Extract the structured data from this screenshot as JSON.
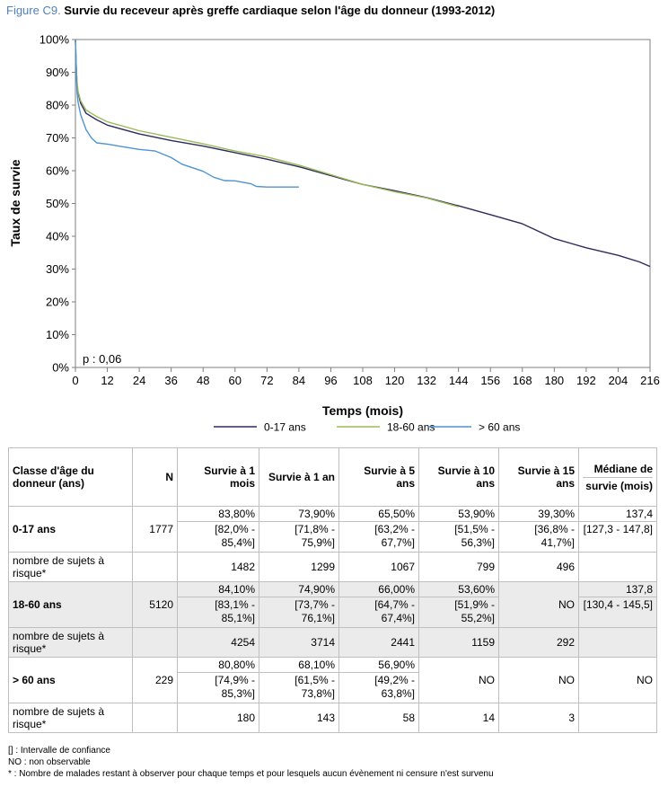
{
  "figure": {
    "label": "Figure C9.",
    "title": "Survie du receveur après greffe cardiaque selon l'âge du donneur (1993-2012)"
  },
  "chart_data": {
    "type": "line",
    "xlabel": "Temps (mois)",
    "ylabel": "Taux de survie",
    "xlim": [
      0,
      216
    ],
    "ylim": [
      0,
      100
    ],
    "x_ticks": [
      0,
      12,
      24,
      36,
      48,
      60,
      72,
      84,
      96,
      108,
      120,
      132,
      144,
      156,
      168,
      180,
      192,
      204,
      216
    ],
    "y_ticks": [
      "0%",
      "10%",
      "20%",
      "30%",
      "40%",
      "50%",
      "60%",
      "70%",
      "80%",
      "90%",
      "100%"
    ],
    "annotation": "p : 0,06",
    "legend_position": "bottom",
    "grid": false,
    "series": [
      {
        "name": "0-17 ans",
        "color": "#2e2b5f",
        "points": [
          [
            0,
            100
          ],
          [
            0.3,
            92
          ],
          [
            0.6,
            86
          ],
          [
            1,
            83.8
          ],
          [
            2,
            80.5
          ],
          [
            4,
            77.5
          ],
          [
            8,
            75.5
          ],
          [
            12,
            73.9
          ],
          [
            24,
            71.2
          ],
          [
            36,
            69.2
          ],
          [
            48,
            67.5
          ],
          [
            60,
            65.5
          ],
          [
            72,
            63.5
          ],
          [
            84,
            61.2
          ],
          [
            96,
            58.5
          ],
          [
            108,
            55.8
          ],
          [
            120,
            53.9
          ],
          [
            132,
            51.8
          ],
          [
            144,
            49.3
          ],
          [
            156,
            46.6
          ],
          [
            168,
            43.8
          ],
          [
            180,
            39.3
          ],
          [
            192,
            36.5
          ],
          [
            204,
            34.2
          ],
          [
            212,
            32.2
          ],
          [
            216,
            30.8
          ]
        ]
      },
      {
        "name": "18-60 ans",
        "color": "#9bbb59",
        "points": [
          [
            0,
            100
          ],
          [
            0.3,
            92
          ],
          [
            0.6,
            87
          ],
          [
            1,
            84.1
          ],
          [
            2,
            81.3
          ],
          [
            4,
            78.5
          ],
          [
            8,
            76.5
          ],
          [
            12,
            74.9
          ],
          [
            24,
            72.2
          ],
          [
            36,
            70.2
          ],
          [
            48,
            68.2
          ],
          [
            60,
            66.0
          ],
          [
            72,
            64.2
          ],
          [
            84,
            61.7
          ],
          [
            96,
            58.8
          ],
          [
            108,
            55.8
          ],
          [
            120,
            53.6
          ],
          [
            132,
            51.7
          ],
          [
            144,
            49.0
          ]
        ]
      },
      {
        "name": "> 60 ans",
        "color": "#4f93d4",
        "points": [
          [
            0,
            100
          ],
          [
            0.3,
            90
          ],
          [
            0.6,
            84
          ],
          [
            1,
            80.8
          ],
          [
            2,
            77
          ],
          [
            4,
            72.5
          ],
          [
            6,
            70
          ],
          [
            8,
            68.5
          ],
          [
            12,
            68.1
          ],
          [
            18,
            67.3
          ],
          [
            24,
            66.5
          ],
          [
            30,
            66
          ],
          [
            36,
            64
          ],
          [
            40,
            62
          ],
          [
            48,
            59.8
          ],
          [
            52,
            58
          ],
          [
            56,
            57
          ],
          [
            60,
            56.9
          ],
          [
            66,
            56
          ],
          [
            68,
            55.2
          ],
          [
            72,
            55
          ],
          [
            84,
            55
          ]
        ]
      }
    ]
  },
  "table": {
    "headers": {
      "class_age": "Classe d'âge du donneur (ans)",
      "n": "N",
      "s1m": "Survie à 1 mois",
      "s1a": "Survie à 1 an",
      "s5a": "Survie à 5 ans",
      "s10a": "Survie à 10 ans",
      "s15a": "Survie à 15 ans",
      "median_top": "Médiane de",
      "median_bottom": "survie (mois)"
    },
    "risk_label": "nombre de sujets à risque*",
    "rows": [
      {
        "group": "0-17 ans",
        "n": "1777",
        "s1m": [
          "83,80%",
          "[82,0% - 85,4%]"
        ],
        "s1a": [
          "73,90%",
          "[71,8% - 75,9%]"
        ],
        "s5a": [
          "65,50%",
          "[63,2% - 67,7%]"
        ],
        "s10a": [
          "53,90%",
          "[51,5% - 56,3%]"
        ],
        "s15a": [
          "39,30%",
          "[36,8% - 41,7%]"
        ],
        "median": [
          "137,4",
          "[127,3 - 147,8]"
        ],
        "risk": [
          "1482",
          "1299",
          "1067",
          "799",
          "496"
        ]
      },
      {
        "group": "18-60 ans",
        "n": "5120",
        "s1m": [
          "84,10%",
          "[83,1% - 85,1%]"
        ],
        "s1a": [
          "74,90%",
          "[73,7% - 76,1%]"
        ],
        "s5a": [
          "66,00%",
          "[64,7% - 67,4%]"
        ],
        "s10a": [
          "53,60%",
          "[51,9% - 55,2%]"
        ],
        "s15a": "NO",
        "median": [
          "137,8",
          "[130,4 - 145,5]"
        ],
        "risk": [
          "4254",
          "3714",
          "2441",
          "1159",
          "292"
        ]
      },
      {
        "group": "> 60 ans",
        "n": "229",
        "s1m": [
          "80,80%",
          "[74,9% - 85,3%]"
        ],
        "s1a": [
          "68,10%",
          "[61,5% - 73,8%]"
        ],
        "s5a": [
          "56,90%",
          "[49,2% - 63,8%]"
        ],
        "s10a": "NO",
        "s15a": "NO",
        "median": "NO",
        "risk": [
          "180",
          "143",
          "58",
          "14",
          "3"
        ]
      }
    ]
  },
  "footnotes": [
    "[] : Intervalle de confiance",
    "NO : non observable",
    "* : Nombre de malades restant à observer pour chaque temps et pour lesquels aucun évènement ni censure n'est survenu"
  ]
}
